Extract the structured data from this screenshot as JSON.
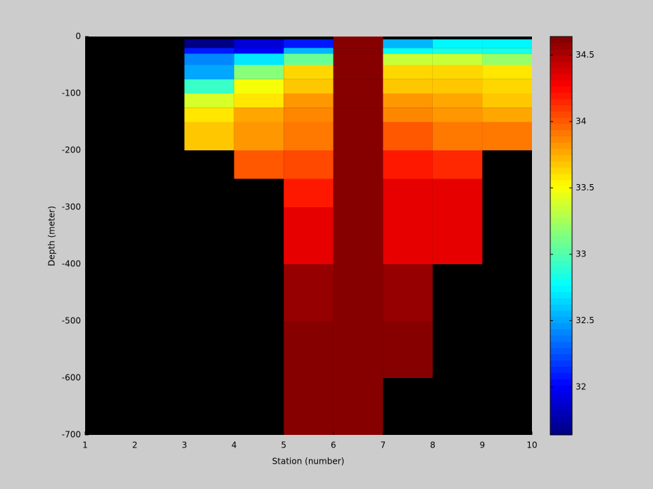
{
  "chart_data": {
    "type": "heatmap",
    "xlabel": "Station (number)",
    "ylabel": "Depth (meter)",
    "x_edges": [
      1,
      2,
      3,
      4,
      5,
      6,
      7,
      8,
      9,
      10
    ],
    "y_edges": [
      0,
      -5,
      -20,
      -30,
      -50,
      -75,
      -100,
      -125,
      -150,
      -200,
      -250,
      -300,
      -400,
      -500,
      -600,
      -700
    ],
    "z": [
      [
        null,
        null,
        null,
        null,
        null,
        34.64,
        null,
        null,
        null
      ],
      [
        null,
        null,
        31.65,
        31.9,
        32.1,
        34.64,
        32.55,
        32.75,
        32.75
      ],
      [
        null,
        null,
        32.1,
        32.0,
        32.55,
        34.64,
        32.8,
        32.85,
        32.85
      ],
      [
        null,
        null,
        32.4,
        32.7,
        33.05,
        34.64,
        33.35,
        33.35,
        33.2
      ],
      [
        null,
        null,
        32.5,
        33.15,
        33.65,
        34.64,
        33.65,
        33.65,
        33.6
      ],
      [
        null,
        null,
        32.95,
        33.5,
        33.7,
        34.64,
        33.7,
        33.7,
        33.65
      ],
      [
        null,
        null,
        33.4,
        33.6,
        33.8,
        34.64,
        33.8,
        33.75,
        33.7
      ],
      [
        null,
        null,
        33.6,
        33.75,
        33.85,
        34.64,
        33.85,
        33.8,
        33.75
      ],
      [
        null,
        null,
        33.7,
        33.8,
        33.9,
        34.64,
        34.0,
        33.9,
        33.9
      ],
      [
        null,
        null,
        null,
        34.0,
        34.05,
        34.64,
        34.2,
        34.15,
        null
      ],
      [
        null,
        null,
        null,
        null,
        34.2,
        34.64,
        34.35,
        34.35,
        null
      ],
      [
        null,
        null,
        null,
        null,
        34.35,
        34.64,
        34.35,
        34.35,
        null
      ],
      [
        null,
        null,
        null,
        null,
        34.55,
        34.64,
        34.55,
        null,
        null
      ],
      [
        null,
        null,
        null,
        null,
        34.64,
        34.64,
        34.64,
        null,
        null
      ],
      [
        null,
        null,
        null,
        null,
        34.64,
        34.64,
        null,
        null,
        null
      ]
    ],
    "xlim": [
      1,
      10
    ],
    "xticks": [
      1,
      2,
      3,
      4,
      5,
      6,
      7,
      8,
      9,
      10
    ],
    "ylim": [
      -700,
      0
    ],
    "yticks": [
      0,
      -100,
      -200,
      -300,
      -400,
      -500,
      -600,
      -700
    ],
    "colormap": "jet",
    "clim": [
      31.64,
      34.64
    ],
    "cticks": [
      32,
      32.5,
      33,
      33.5,
      34,
      34.5
    ]
  }
}
